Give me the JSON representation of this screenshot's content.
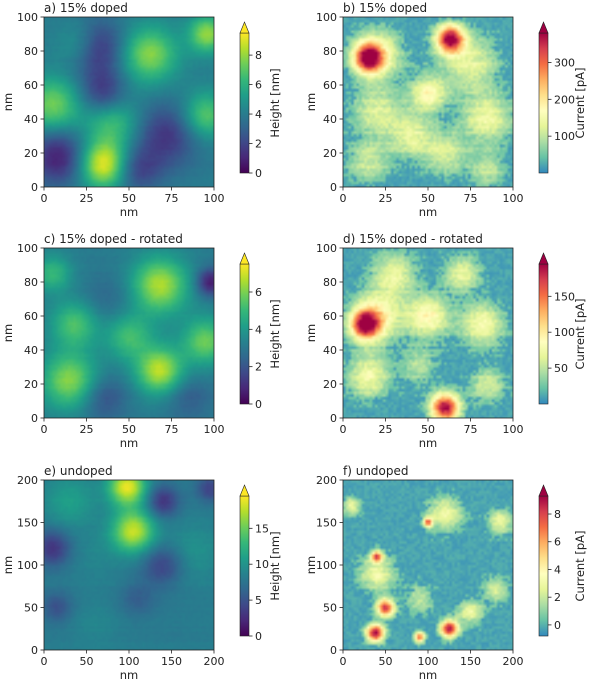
{
  "chart_data": [
    {
      "id": "a",
      "type": "heatmap",
      "title": "a) 15% doped",
      "xlabel": "nm",
      "ylabel": "nm",
      "xlim": [
        0,
        100
      ],
      "ylim": [
        0,
        100
      ],
      "xticks": [
        "0",
        "25",
        "50",
        "75",
        "100"
      ],
      "yticks": [
        "0",
        "20",
        "40",
        "60",
        "80",
        "100"
      ],
      "colormap": "viridis",
      "colorbar": {
        "label": "Height [nm]",
        "range": [
          0,
          9.5
        ],
        "ticks": [
          "0",
          "2",
          "4",
          "6",
          "8"
        ],
        "extend": "max"
      },
      "features": [
        {
          "x": 35,
          "y": 13,
          "r": 10,
          "value": 9.2
        },
        {
          "x": 62,
          "y": 78,
          "r": 12,
          "value": 7.8
        },
        {
          "x": 5,
          "y": 48,
          "r": 12,
          "value": 7.5
        },
        {
          "x": 95,
          "y": 42,
          "r": 10,
          "value": 7.2
        },
        {
          "x": 40,
          "y": 38,
          "r": 12,
          "value": 6.8
        },
        {
          "x": 96,
          "y": 90,
          "r": 8,
          "value": 8.0
        },
        {
          "x": 22,
          "y": 84,
          "r": 10,
          "value": 6.4
        },
        {
          "x": 30,
          "y": 82,
          "r": 12,
          "value": 0.6
        },
        {
          "x": 35,
          "y": 55,
          "r": 10,
          "value": 1.3
        },
        {
          "x": 8,
          "y": 18,
          "r": 12,
          "value": 0.8
        },
        {
          "x": 72,
          "y": 30,
          "r": 14,
          "value": 1.5
        },
        {
          "x": 55,
          "y": 10,
          "r": 10,
          "value": 2.0
        }
      ]
    },
    {
      "id": "b",
      "type": "heatmap",
      "title": "b) 15% doped",
      "xlabel": "nm",
      "ylabel": "",
      "xlim": [
        0,
        100
      ],
      "ylim": [
        0,
        100
      ],
      "xticks": [
        "0",
        "25",
        "50",
        "75",
        "100"
      ],
      "yticks": [
        "0",
        "20",
        "40",
        "60",
        "80",
        "100"
      ],
      "colormap": "Spectral_r",
      "colorbar": {
        "label": "Current [pA]",
        "range": [
          0,
          380
        ],
        "ticks": [
          "100",
          "200",
          "300"
        ],
        "extend": "max"
      },
      "features": [
        {
          "x": 63,
          "y": 87,
          "r": 8,
          "value": 380
        },
        {
          "x": 15,
          "y": 76,
          "r": 8,
          "value": 340
        },
        {
          "x": 20,
          "y": 78,
          "r": 14,
          "value": 160
        },
        {
          "x": 75,
          "y": 72,
          "r": 16,
          "value": 130
        },
        {
          "x": 85,
          "y": 40,
          "r": 14,
          "value": 140
        },
        {
          "x": 20,
          "y": 45,
          "r": 14,
          "value": 120
        },
        {
          "x": 40,
          "y": 30,
          "r": 12,
          "value": 130
        },
        {
          "x": 60,
          "y": 20,
          "r": 12,
          "value": 120
        },
        {
          "x": 15,
          "y": 15,
          "r": 12,
          "value": 110
        },
        {
          "x": 85,
          "y": 10,
          "r": 10,
          "value": 100
        },
        {
          "x": 50,
          "y": 55,
          "r": 10,
          "value": 170
        }
      ]
    },
    {
      "id": "c",
      "type": "heatmap",
      "title": "c) 15% doped - rotated",
      "xlabel": "nm",
      "ylabel": "nm",
      "xlim": [
        0,
        100
      ],
      "ylim": [
        0,
        100
      ],
      "xticks": [
        "0",
        "25",
        "50",
        "75",
        "100"
      ],
      "yticks": [
        "0",
        "20",
        "40",
        "60",
        "80",
        "100"
      ],
      "colormap": "viridis",
      "colorbar": {
        "label": "Height [nm]",
        "range": [
          0,
          7.5
        ],
        "ticks": [
          "0",
          "2",
          "4",
          "6"
        ],
        "extend": "max"
      },
      "features": [
        {
          "x": 68,
          "y": 78,
          "r": 12,
          "value": 6.6
        },
        {
          "x": 68,
          "y": 28,
          "r": 10,
          "value": 6.8
        },
        {
          "x": 15,
          "y": 22,
          "r": 12,
          "value": 6.2
        },
        {
          "x": 18,
          "y": 55,
          "r": 10,
          "value": 5.4
        },
        {
          "x": 50,
          "y": 48,
          "r": 10,
          "value": 5.2
        },
        {
          "x": 95,
          "y": 45,
          "r": 10,
          "value": 5.8
        },
        {
          "x": 5,
          "y": 85,
          "r": 8,
          "value": 5.0
        },
        {
          "x": 98,
          "y": 80,
          "r": 6,
          "value": 0.5
        },
        {
          "x": 35,
          "y": 12,
          "r": 10,
          "value": 1.8
        },
        {
          "x": 38,
          "y": 70,
          "r": 12,
          "value": 2.5
        },
        {
          "x": 85,
          "y": 12,
          "r": 10,
          "value": 2.2
        }
      ]
    },
    {
      "id": "d",
      "type": "heatmap",
      "title": "d) 15% doped - rotated",
      "xlabel": "nm",
      "ylabel": "",
      "xlim": [
        0,
        100
      ],
      "ylim": [
        0,
        100
      ],
      "xticks": [
        "0",
        "25",
        "50",
        "75",
        "100"
      ],
      "yticks": [
        "0",
        "20",
        "40",
        "60",
        "80",
        "100"
      ],
      "colormap": "Spectral_r",
      "colorbar": {
        "label": "Current [pA]",
        "range": [
          0,
          195
        ],
        "ticks": [
          "50",
          "100",
          "150"
        ],
        "extend": "max"
      },
      "features": [
        {
          "x": 60,
          "y": 6,
          "r": 8,
          "value": 195
        },
        {
          "x": 13,
          "y": 55,
          "r": 8,
          "value": 180
        },
        {
          "x": 20,
          "y": 60,
          "r": 14,
          "value": 90
        },
        {
          "x": 15,
          "y": 25,
          "r": 12,
          "value": 80
        },
        {
          "x": 50,
          "y": 60,
          "r": 12,
          "value": 90
        },
        {
          "x": 82,
          "y": 55,
          "r": 12,
          "value": 80
        },
        {
          "x": 30,
          "y": 85,
          "r": 12,
          "value": 70
        },
        {
          "x": 70,
          "y": 85,
          "r": 10,
          "value": 70
        },
        {
          "x": 85,
          "y": 20,
          "r": 10,
          "value": 60
        },
        {
          "x": 45,
          "y": 30,
          "r": 10,
          "value": 50
        }
      ]
    },
    {
      "id": "e",
      "type": "heatmap",
      "title": "e) undoped",
      "xlabel": "nm",
      "ylabel": "nm",
      "xlim": [
        0,
        200
      ],
      "ylim": [
        0,
        200
      ],
      "xticks": [
        "0",
        "50",
        "100",
        "150",
        "200"
      ],
      "yticks": [
        "0",
        "50",
        "100",
        "150",
        "200"
      ],
      "colormap": "viridis",
      "colorbar": {
        "label": "Height [nm]",
        "range": [
          0,
          19.5
        ],
        "ticks": [
          "0",
          "5",
          "10",
          "15"
        ],
        "extend": "max"
      },
      "features": [
        {
          "x": 98,
          "y": 192,
          "r": 16,
          "value": 19
        },
        {
          "x": 105,
          "y": 140,
          "r": 18,
          "value": 18
        },
        {
          "x": 30,
          "y": 175,
          "r": 22,
          "value": 11
        },
        {
          "x": 175,
          "y": 115,
          "r": 24,
          "value": 10
        },
        {
          "x": 60,
          "y": 110,
          "r": 22,
          "value": 9
        },
        {
          "x": 60,
          "y": 30,
          "r": 20,
          "value": 9
        },
        {
          "x": 150,
          "y": 40,
          "r": 20,
          "value": 8
        },
        {
          "x": 140,
          "y": 175,
          "r": 14,
          "value": 3
        },
        {
          "x": 140,
          "y": 100,
          "r": 18,
          "value": 4
        },
        {
          "x": 10,
          "y": 120,
          "r": 16,
          "value": 3
        },
        {
          "x": 110,
          "y": 60,
          "r": 16,
          "value": 6
        },
        {
          "x": 15,
          "y": 50,
          "r": 14,
          "value": 5
        },
        {
          "x": 195,
          "y": 190,
          "r": 12,
          "value": 4
        }
      ]
    },
    {
      "id": "f",
      "type": "heatmap",
      "title": "f) undoped",
      "xlabel": "nm",
      "ylabel": "",
      "xlim": [
        0,
        200
      ],
      "ylim": [
        0,
        200
      ],
      "xticks": [
        "0",
        "50",
        "100",
        "150",
        "200"
      ],
      "yticks": [
        "0",
        "50",
        "100",
        "150",
        "200"
      ],
      "colormap": "Spectral_r",
      "colorbar": {
        "label": "Current [pA]",
        "range": [
          -0.8,
          9.3
        ],
        "ticks": [
          "0",
          "2",
          "4",
          "6",
          "8"
        ],
        "extend": "max"
      },
      "features": [
        {
          "x": 38,
          "y": 20,
          "r": 10,
          "value": 9.3
        },
        {
          "x": 125,
          "y": 25,
          "r": 10,
          "value": 9
        },
        {
          "x": 50,
          "y": 50,
          "r": 10,
          "value": 8
        },
        {
          "x": 40,
          "y": 110,
          "r": 6,
          "value": 7
        },
        {
          "x": 90,
          "y": 15,
          "r": 6,
          "value": 7
        },
        {
          "x": 100,
          "y": 150,
          "r": 5,
          "value": 7
        },
        {
          "x": 40,
          "y": 90,
          "r": 20,
          "value": 3
        },
        {
          "x": 120,
          "y": 160,
          "r": 20,
          "value": 3
        },
        {
          "x": 185,
          "y": 150,
          "r": 14,
          "value": 3
        },
        {
          "x": 180,
          "y": 70,
          "r": 14,
          "value": 2.5
        },
        {
          "x": 10,
          "y": 170,
          "r": 10,
          "value": 3
        },
        {
          "x": 150,
          "y": 45,
          "r": 14,
          "value": 3
        },
        {
          "x": 90,
          "y": 60,
          "r": 16,
          "value": 2
        }
      ]
    }
  ]
}
